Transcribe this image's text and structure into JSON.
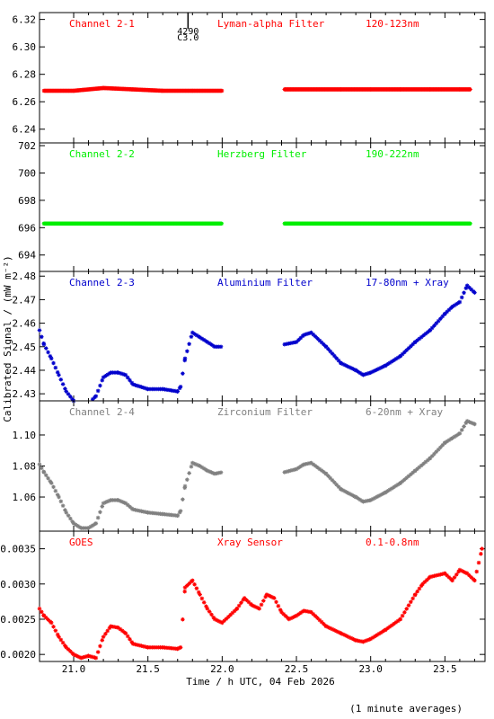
{
  "figure": {
    "ylabel": "Calibrated Signal / (mW m⁻²)",
    "xlabel": "Time / h UTC, 04 Feb 2026",
    "footnote": "(1 minute averages)",
    "xticks": [
      "21.0",
      "21.5",
      "22.0",
      "22.5",
      "23.0",
      "23.5"
    ]
  },
  "chart_data": [
    {
      "type": "scatter",
      "title": "Channel 2-1",
      "filter": "Lyman-alpha Filter",
      "band": "120-123nm",
      "color": "#ff0000",
      "xlim": [
        20.77,
        23.77
      ],
      "ylim": [
        6.23,
        6.325
      ],
      "yticks": [
        "6.24",
        "6.26",
        "6.28",
        "6.30",
        "6.32"
      ],
      "event": {
        "x": 21.77,
        "label_top": "4290",
        "label_bottom": "C3.0"
      },
      "x": [
        20.8,
        21.0,
        21.2,
        21.4,
        21.6,
        21.8,
        22.0,
        22.42,
        22.6,
        22.8,
        23.0,
        23.2,
        23.4,
        23.6,
        23.67
      ],
      "y": [
        6.268,
        6.268,
        6.27,
        6.269,
        6.268,
        6.268,
        6.268,
        6.269,
        6.269,
        6.269,
        6.269,
        6.269,
        6.269,
        6.269,
        6.269
      ]
    },
    {
      "type": "scatter",
      "title": "Channel 2-2",
      "filter": "Herzberg Filter",
      "band": "190-222nm",
      "color": "#00ee00",
      "xlim": [
        20.77,
        23.77
      ],
      "ylim": [
        692.8,
        702.2
      ],
      "yticks": [
        "694",
        "696",
        "698",
        "700",
        "702"
      ],
      "x": [
        20.8,
        21.2,
        21.6,
        22.0,
        22.42,
        22.8,
        23.2,
        23.67
      ],
      "y": [
        696.3,
        696.3,
        696.3,
        696.3,
        696.3,
        696.3,
        696.3,
        696.3
      ]
    },
    {
      "type": "scatter",
      "title": "Channel 2-3",
      "filter": "Aluminium Filter",
      "band": "17-80nm + Xray",
      "color": "#0000cc",
      "xlim": [
        20.77,
        23.77
      ],
      "ylim": [
        2.427,
        2.482
      ],
      "yticks": [
        "2.43",
        "2.44",
        "2.45",
        "2.46",
        "2.47",
        "2.48"
      ],
      "x": [
        20.77,
        20.8,
        20.85,
        20.9,
        20.95,
        21.0,
        21.05,
        21.1,
        21.15,
        21.2,
        21.25,
        21.3,
        21.35,
        21.4,
        21.5,
        21.6,
        21.7,
        21.72,
        21.75,
        21.8,
        21.85,
        21.9,
        21.95,
        22.0,
        22.42,
        22.5,
        22.55,
        22.6,
        22.7,
        22.8,
        22.9,
        22.95,
        23.0,
        23.1,
        23.2,
        23.3,
        23.4,
        23.5,
        23.55,
        23.6,
        23.65,
        23.7
      ],
      "y": [
        2.457,
        2.451,
        2.445,
        2.438,
        2.431,
        2.427,
        2.426,
        2.426,
        2.429,
        2.437,
        2.439,
        2.439,
        2.438,
        2.434,
        2.432,
        2.432,
        2.431,
        2.433,
        2.445,
        2.456,
        2.454,
        2.452,
        2.45,
        2.45,
        2.451,
        2.452,
        2.455,
        2.456,
        2.45,
        2.443,
        2.44,
        2.438,
        2.439,
        2.442,
        2.446,
        2.452,
        2.457,
        2.464,
        2.467,
        2.469,
        2.476,
        2.473
      ]
    },
    {
      "type": "scatter",
      "title": "Channel 2-4",
      "filter": "Zirconium Filter",
      "band": "6-20nm + Xray",
      "color": "#808080",
      "xlim": [
        20.77,
        23.77
      ],
      "ylim": [
        1.038,
        1.122
      ],
      "yticks": [
        "1.06",
        "1.08",
        "1.10"
      ],
      "x": [
        20.77,
        20.8,
        20.85,
        20.9,
        20.95,
        21.0,
        21.05,
        21.1,
        21.15,
        21.2,
        21.25,
        21.3,
        21.35,
        21.4,
        21.5,
        21.6,
        21.7,
        21.72,
        21.75,
        21.8,
        21.85,
        21.9,
        21.95,
        22.0,
        22.42,
        22.5,
        22.55,
        22.6,
        22.7,
        22.8,
        22.9,
        22.95,
        23.0,
        23.1,
        23.2,
        23.3,
        23.4,
        23.5,
        23.55,
        23.6,
        23.65,
        23.7
      ],
      "y": [
        1.081,
        1.076,
        1.069,
        1.06,
        1.05,
        1.043,
        1.04,
        1.04,
        1.043,
        1.056,
        1.058,
        1.058,
        1.056,
        1.052,
        1.05,
        1.049,
        1.048,
        1.051,
        1.067,
        1.082,
        1.08,
        1.077,
        1.075,
        1.076,
        1.076,
        1.078,
        1.081,
        1.082,
        1.075,
        1.065,
        1.06,
        1.057,
        1.058,
        1.063,
        1.069,
        1.077,
        1.085,
        1.095,
        1.098,
        1.101,
        1.109,
        1.107
      ]
    },
    {
      "type": "scatter",
      "title": "GOES",
      "filter": "Xray Sensor",
      "band": "0.1-0.8nm",
      "color": "#ff0000",
      "xlim": [
        20.77,
        23.77
      ],
      "ylim": [
        0.0019,
        0.00375
      ],
      "yticks": [
        "0.0020",
        "0.0025",
        "0.0030",
        "0.0035"
      ],
      "x": [
        20.77,
        20.8,
        20.85,
        20.9,
        20.95,
        21.0,
        21.05,
        21.1,
        21.15,
        21.2,
        21.25,
        21.3,
        21.35,
        21.4,
        21.5,
        21.6,
        21.7,
        21.72,
        21.75,
        21.8,
        21.85,
        21.9,
        21.95,
        22.0,
        22.1,
        22.15,
        22.2,
        22.25,
        22.3,
        22.35,
        22.4,
        22.45,
        22.5,
        22.55,
        22.6,
        22.7,
        22.8,
        22.9,
        22.95,
        23.0,
        23.1,
        23.2,
        23.3,
        23.35,
        23.4,
        23.5,
        23.55,
        23.6,
        23.65,
        23.7,
        23.75
      ],
      "y": [
        0.00265,
        0.00255,
        0.00245,
        0.00225,
        0.0021,
        0.002,
        0.00195,
        0.00198,
        0.00195,
        0.00225,
        0.0024,
        0.00238,
        0.0023,
        0.00215,
        0.0021,
        0.0021,
        0.00208,
        0.0021,
        0.00295,
        0.00305,
        0.00285,
        0.00265,
        0.0025,
        0.00245,
        0.00265,
        0.0028,
        0.0027,
        0.00265,
        0.00285,
        0.0028,
        0.0026,
        0.0025,
        0.00255,
        0.00262,
        0.0026,
        0.0024,
        0.0023,
        0.0022,
        0.00218,
        0.00222,
        0.00235,
        0.0025,
        0.00285,
        0.003,
        0.0031,
        0.00315,
        0.00305,
        0.0032,
        0.00315,
        0.00305,
        0.0035
      ]
    }
  ]
}
